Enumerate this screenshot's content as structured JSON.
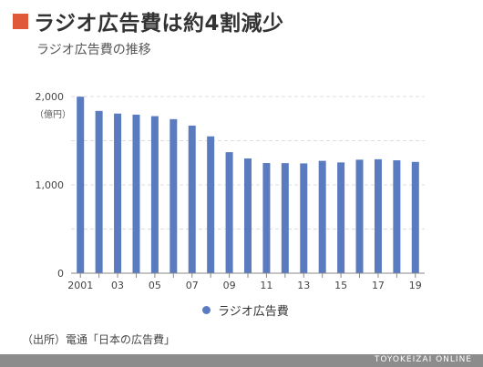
{
  "header": {
    "title": "ラジオ広告費は約4割減少",
    "subtitle": "ラジオ広告費の推移",
    "marker_color": "#e05a3a"
  },
  "chart_data": {
    "type": "bar",
    "title": "ラジオ広告費は約4割減少",
    "subtitle": "ラジオ広告費の推移",
    "unit_label": "（億円）",
    "categories": [
      "2001",
      "02",
      "03",
      "04",
      "05",
      "06",
      "07",
      "08",
      "09",
      "10",
      "11",
      "12",
      "13",
      "14",
      "15",
      "16",
      "17",
      "18",
      "19"
    ],
    "x_tick_labels": [
      "2001",
      "",
      "03",
      "",
      "05",
      "",
      "07",
      "",
      "09",
      "",
      "11",
      "",
      "13",
      "",
      "15",
      "",
      "17",
      "",
      "19"
    ],
    "series": [
      {
        "name": "ラジオ広告費",
        "color": "#5b7bc0",
        "values": [
          1998,
          1837,
          1807,
          1795,
          1778,
          1744,
          1671,
          1549,
          1370,
          1299,
          1247,
          1246,
          1243,
          1272,
          1254,
          1285,
          1290,
          1278,
          1260
        ]
      }
    ],
    "y_ticks": [
      0,
      1000,
      2000
    ],
    "y_tick_labels": [
      "0",
      "1,000",
      "2,000"
    ],
    "ylim": [
      0,
      2000
    ],
    "grid": true,
    "legend_position": "bottom"
  },
  "source": "（出所）電通「日本の広告費」",
  "footer": {
    "brand": "TOYOKEIZAI ONLINE",
    "bar_color": "#8c8c8c"
  }
}
